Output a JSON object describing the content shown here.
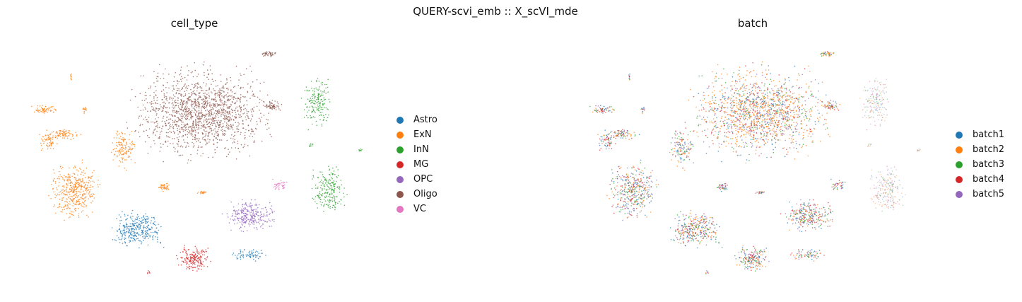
{
  "chart_data": {
    "suptitle": "QUERY-scvi_emb :: X_scVI_mde",
    "type": "scatter",
    "panels": [
      {
        "title": "cell_type",
        "legend_position": "right",
        "categories": [
          {
            "name": "Astro",
            "color": "#1f77b4"
          },
          {
            "name": "ExN",
            "color": "#ff7f0e"
          },
          {
            "name": "InN",
            "color": "#2ca02c"
          },
          {
            "name": "MG",
            "color": "#d62728"
          },
          {
            "name": "OPC",
            "color": "#9467bd"
          },
          {
            "name": "Oligo",
            "color": "#8c564b"
          },
          {
            "name": "VC",
            "color": "#e377c2"
          }
        ]
      },
      {
        "title": "batch",
        "legend_position": "right",
        "categories": [
          {
            "name": "batch1",
            "color": "#1f77b4"
          },
          {
            "name": "batch2",
            "color": "#ff7f0e"
          },
          {
            "name": "batch3",
            "color": "#2ca02c"
          },
          {
            "name": "batch4",
            "color": "#d62728"
          },
          {
            "name": "batch5",
            "color": "#9467bd"
          }
        ]
      }
    ],
    "grid": false,
    "axes_visible": false
  }
}
